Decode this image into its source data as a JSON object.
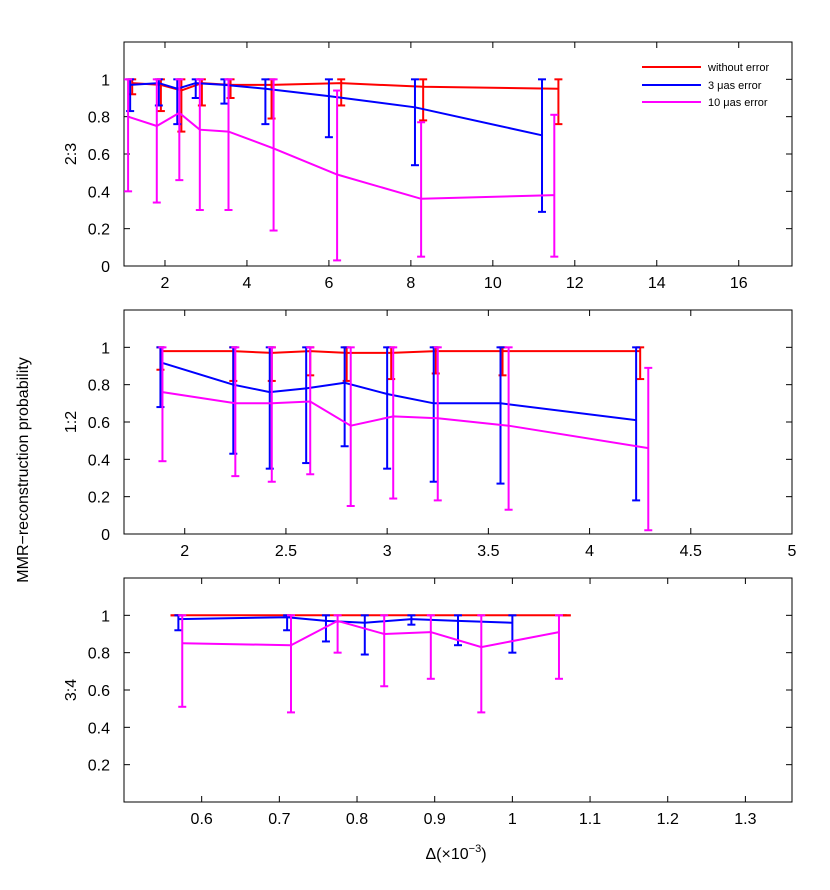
{
  "figure": {
    "ylabel": "MMR−reconstruction probability",
    "xlabel_main": "Δ(×10",
    "xlabel_exp": "−3",
    "xlabel_tail": ")",
    "legend": [
      {
        "label": "without error",
        "color": "#ff0000"
      },
      {
        "label": "3 μas error",
        "color": "#0000ff"
      },
      {
        "label": "10 μas error",
        "color": "#ff00ff"
      }
    ]
  },
  "chart_data": [
    {
      "type": "line",
      "panel_label": "2:3",
      "xlim": [
        1,
        17.3
      ],
      "ylim": [
        0,
        1.2
      ],
      "xticks": [
        2,
        4,
        6,
        8,
        10,
        12,
        14,
        16
      ],
      "yticks": [
        0,
        0.2,
        0.4,
        0.6,
        0.8,
        1
      ],
      "yticklabels": [
        "0",
        "0.2",
        "0.4",
        "0.6",
        "0.8",
        "1"
      ],
      "series": [
        {
          "name": "without error",
          "color": "#ff0000",
          "x": [
            1.2,
            1.9,
            2.4,
            2.9,
            3.6,
            4.6,
            6.3,
            8.3,
            11.6
          ],
          "y": [
            0.98,
            0.97,
            0.94,
            0.98,
            0.97,
            0.97,
            0.98,
            0.96,
            0.95
          ],
          "lower": [
            0.92,
            0.83,
            0.72,
            0.86,
            0.9,
            0.79,
            0.86,
            0.78,
            0.76
          ],
          "upper": [
            1,
            1,
            1,
            1,
            1,
            1,
            1,
            1,
            1
          ]
        },
        {
          "name": "3 μas error",
          "color": "#0000ff",
          "x": [
            1.15,
            1.85,
            2.3,
            2.75,
            3.45,
            4.45,
            6.0,
            8.1,
            11.2
          ],
          "y": [
            0.97,
            0.98,
            0.95,
            0.98,
            0.97,
            0.95,
            0.91,
            0.85,
            0.7
          ],
          "lower": [
            0.83,
            0.86,
            0.76,
            0.9,
            0.87,
            0.76,
            0.69,
            0.54,
            0.29
          ],
          "upper": [
            1,
            1,
            1,
            1,
            1,
            1,
            1,
            1,
            1
          ]
        },
        {
          "name": "10 μas error",
          "color": "#ff00ff",
          "x": [
            1.1,
            1.8,
            2.35,
            2.85,
            3.55,
            4.65,
            6.2,
            8.25,
            11.5
          ],
          "y": [
            0.8,
            0.75,
            0.82,
            0.73,
            0.72,
            0.63,
            0.49,
            0.36,
            0.38
          ],
          "lower": [
            0.4,
            0.34,
            0.46,
            0.3,
            0.3,
            0.19,
            0.03,
            0.05,
            0.05
          ],
          "upper": [
            1,
            1,
            1,
            1,
            1,
            1,
            0.94,
            0.77,
            0.81
          ]
        }
      ]
    },
    {
      "type": "line",
      "panel_label": "1:2",
      "xlim": [
        1.7,
        5
      ],
      "ylim": [
        0,
        1.2
      ],
      "xticks": [
        2,
        2.5,
        3,
        3.5,
        4,
        4.5,
        5
      ],
      "yticks": [
        0,
        0.2,
        0.4,
        0.6,
        0.8,
        1
      ],
      "yticklabels": [
        "0",
        "0.2",
        "0.4",
        "0.6",
        "0.8",
        "1"
      ],
      "series": [
        {
          "name": "without error",
          "color": "#ff0000",
          "x": [
            1.88,
            2.24,
            2.43,
            2.62,
            2.8,
            3.02,
            3.24,
            3.57,
            4.25
          ],
          "y": [
            0.98,
            0.98,
            0.97,
            0.98,
            0.97,
            0.97,
            0.98,
            0.98,
            0.98
          ],
          "lower": [
            0.88,
            0.82,
            0.82,
            0.85,
            0.82,
            0.83,
            0.86,
            0.85,
            0.83
          ],
          "upper": [
            1,
            1,
            1,
            1,
            1,
            1,
            1,
            1,
            1
          ]
        },
        {
          "name": "3 μas error",
          "color": "#0000ff",
          "x": [
            1.88,
            2.24,
            2.42,
            2.6,
            2.79,
            3.0,
            3.23,
            3.56,
            4.23
          ],
          "y": [
            0.92,
            0.8,
            0.76,
            0.78,
            0.81,
            0.75,
            0.7,
            0.7,
            0.61
          ],
          "lower": [
            0.68,
            0.43,
            0.35,
            0.38,
            0.47,
            0.35,
            0.28,
            0.27,
            0.18
          ],
          "upper": [
            1,
            1,
            1,
            1,
            1,
            1,
            1,
            1,
            1
          ]
        },
        {
          "name": "10 μas error",
          "color": "#ff00ff",
          "x": [
            1.89,
            2.25,
            2.43,
            2.62,
            2.82,
            3.03,
            3.25,
            3.6,
            4.29
          ],
          "y": [
            0.76,
            0.7,
            0.7,
            0.71,
            0.58,
            0.63,
            0.62,
            0.58,
            0.46
          ],
          "lower": [
            0.39,
            0.31,
            0.28,
            0.32,
            0.15,
            0.19,
            0.18,
            0.13,
            0.02
          ],
          "upper": [
            1,
            1,
            1,
            1,
            1,
            1,
            1,
            1,
            0.89
          ]
        }
      ]
    },
    {
      "type": "line",
      "panel_label": "3:4",
      "xlim": [
        0.5,
        1.36
      ],
      "ylim": [
        0,
        1.2
      ],
      "xticks": [
        0.6,
        0.7,
        0.8,
        0.9,
        1,
        1.1,
        1.2,
        1.3
      ],
      "yticks": [
        0.2,
        0.4,
        0.6,
        0.8,
        1
      ],
      "yticklabels": [
        "0.2",
        "0.4",
        "0.6",
        "0.8",
        "1"
      ],
      "series": [
        {
          "name": "without error",
          "color": "#ff0000",
          "x": [
            0.565,
            1.07
          ],
          "y": [
            1.0,
            1.0
          ],
          "lower": [
            1.0,
            1.0
          ],
          "upper": [
            1.0,
            1.0
          ]
        },
        {
          "name": "3 μas error",
          "color": "#0000ff",
          "x": [
            0.57,
            0.71,
            0.76,
            0.81,
            0.87,
            0.93,
            1.0
          ],
          "y": [
            0.98,
            0.99,
            0.97,
            0.96,
            0.98,
            0.97,
            0.96
          ],
          "lower": [
            0.92,
            0.92,
            0.86,
            0.79,
            0.95,
            0.84,
            0.8
          ],
          "upper": [
            1,
            1,
            1,
            1,
            1,
            1,
            1
          ]
        },
        {
          "name": "10 μas error",
          "color": "#ff00ff",
          "x": [
            0.575,
            0.715,
            0.775,
            0.835,
            0.895,
            0.96,
            1.06
          ],
          "y": [
            0.85,
            0.84,
            0.97,
            0.9,
            0.91,
            0.83,
            0.91
          ],
          "lower": [
            0.51,
            0.48,
            0.8,
            0.62,
            0.66,
            0.48,
            0.66
          ],
          "upper": [
            1,
            1,
            1,
            1,
            1,
            1,
            1
          ]
        }
      ]
    }
  ]
}
